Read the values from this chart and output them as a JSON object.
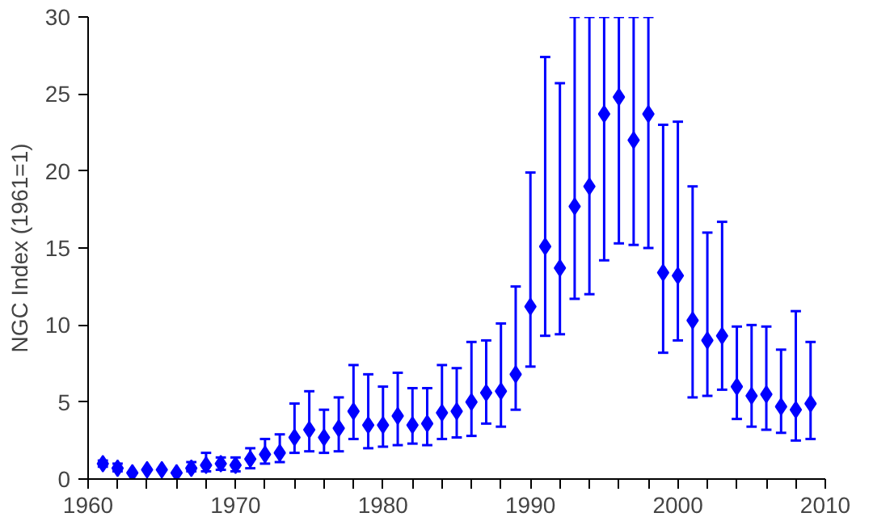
{
  "chart_data": {
    "type": "scatter",
    "ylabel": "NGC Index (1961=1)",
    "marker": "diamond",
    "grid": false,
    "x": [
      1961,
      1962,
      1963,
      1964,
      1965,
      1966,
      1967,
      1968,
      1969,
      1970,
      1971,
      1972,
      1973,
      1974,
      1975,
      1976,
      1977,
      1978,
      1979,
      1980,
      1981,
      1982,
      1983,
      1984,
      1985,
      1986,
      1987,
      1988,
      1989,
      1990,
      1991,
      1992,
      1993,
      1994,
      1995,
      1996,
      1997,
      1998,
      1999,
      2000,
      2001,
      2002,
      2003,
      2004,
      2005,
      2006,
      2007,
      2008,
      2009
    ],
    "series": [
      {
        "color": "#0000ff",
        "values": [
          1.0,
          0.7,
          0.4,
          0.6,
          0.6,
          0.4,
          0.7,
          0.9,
          1.0,
          0.9,
          1.3,
          1.6,
          1.7,
          2.7,
          3.2,
          2.7,
          3.3,
          4.4,
          3.5,
          3.5,
          4.1,
          3.5,
          3.6,
          4.3,
          4.4,
          5.0,
          5.6,
          5.7,
          6.8,
          11.2,
          15.1,
          13.7,
          17.7,
          19.0,
          23.7,
          24.8,
          22.0,
          23.7,
          13.4,
          13.2,
          10.3,
          9.0,
          9.3,
          6.0,
          5.4,
          5.5,
          4.7,
          4.5,
          4.9
        ],
        "errors": [
          [
            0.8,
            1.2
          ],
          [
            0.5,
            1.0
          ],
          null,
          null,
          null,
          null,
          [
            0.5,
            1.1
          ],
          [
            0.5,
            1.7
          ],
          [
            0.6,
            1.4
          ],
          [
            0.5,
            1.4
          ],
          [
            0.7,
            2.0
          ],
          [
            1.0,
            2.6
          ],
          [
            1.1,
            2.9
          ],
          [
            1.7,
            4.9
          ],
          [
            1.8,
            5.7
          ],
          [
            1.7,
            4.5
          ],
          [
            1.8,
            5.3
          ],
          [
            2.6,
            7.4
          ],
          [
            2.0,
            6.8
          ],
          [
            2.1,
            6.0
          ],
          [
            2.2,
            6.9
          ],
          [
            2.3,
            5.9
          ],
          [
            2.2,
            5.9
          ],
          [
            2.6,
            7.4
          ],
          [
            2.7,
            7.2
          ],
          [
            2.8,
            8.9
          ],
          [
            3.6,
            9.0
          ],
          [
            3.4,
            10.1
          ],
          [
            4.5,
            12.5
          ],
          [
            7.3,
            19.9
          ],
          [
            9.3,
            27.4
          ],
          [
            9.4,
            25.7
          ],
          [
            11.7,
            30
          ],
          [
            12.0,
            30
          ],
          [
            14.2,
            30
          ],
          [
            15.3,
            30
          ],
          [
            15.2,
            30
          ],
          [
            15.0,
            30
          ],
          [
            8.2,
            23.0
          ],
          [
            9.0,
            23.2
          ],
          [
            5.3,
            19.0
          ],
          [
            5.4,
            16.0
          ],
          [
            5.8,
            16.7
          ],
          [
            3.9,
            9.9
          ],
          [
            3.4,
            10.0
          ],
          [
            3.2,
            9.9
          ],
          [
            3.0,
            8.4
          ],
          [
            2.5,
            10.9
          ],
          [
            2.6,
            8.9
          ]
        ]
      }
    ],
    "xlim": [
      1960,
      2010
    ],
    "xticks": [
      1960,
      1970,
      1980,
      1990,
      2000,
      2010
    ],
    "ylim": [
      0,
      30
    ],
    "yticks": [
      0,
      5,
      10,
      15,
      20,
      25,
      30
    ]
  }
}
